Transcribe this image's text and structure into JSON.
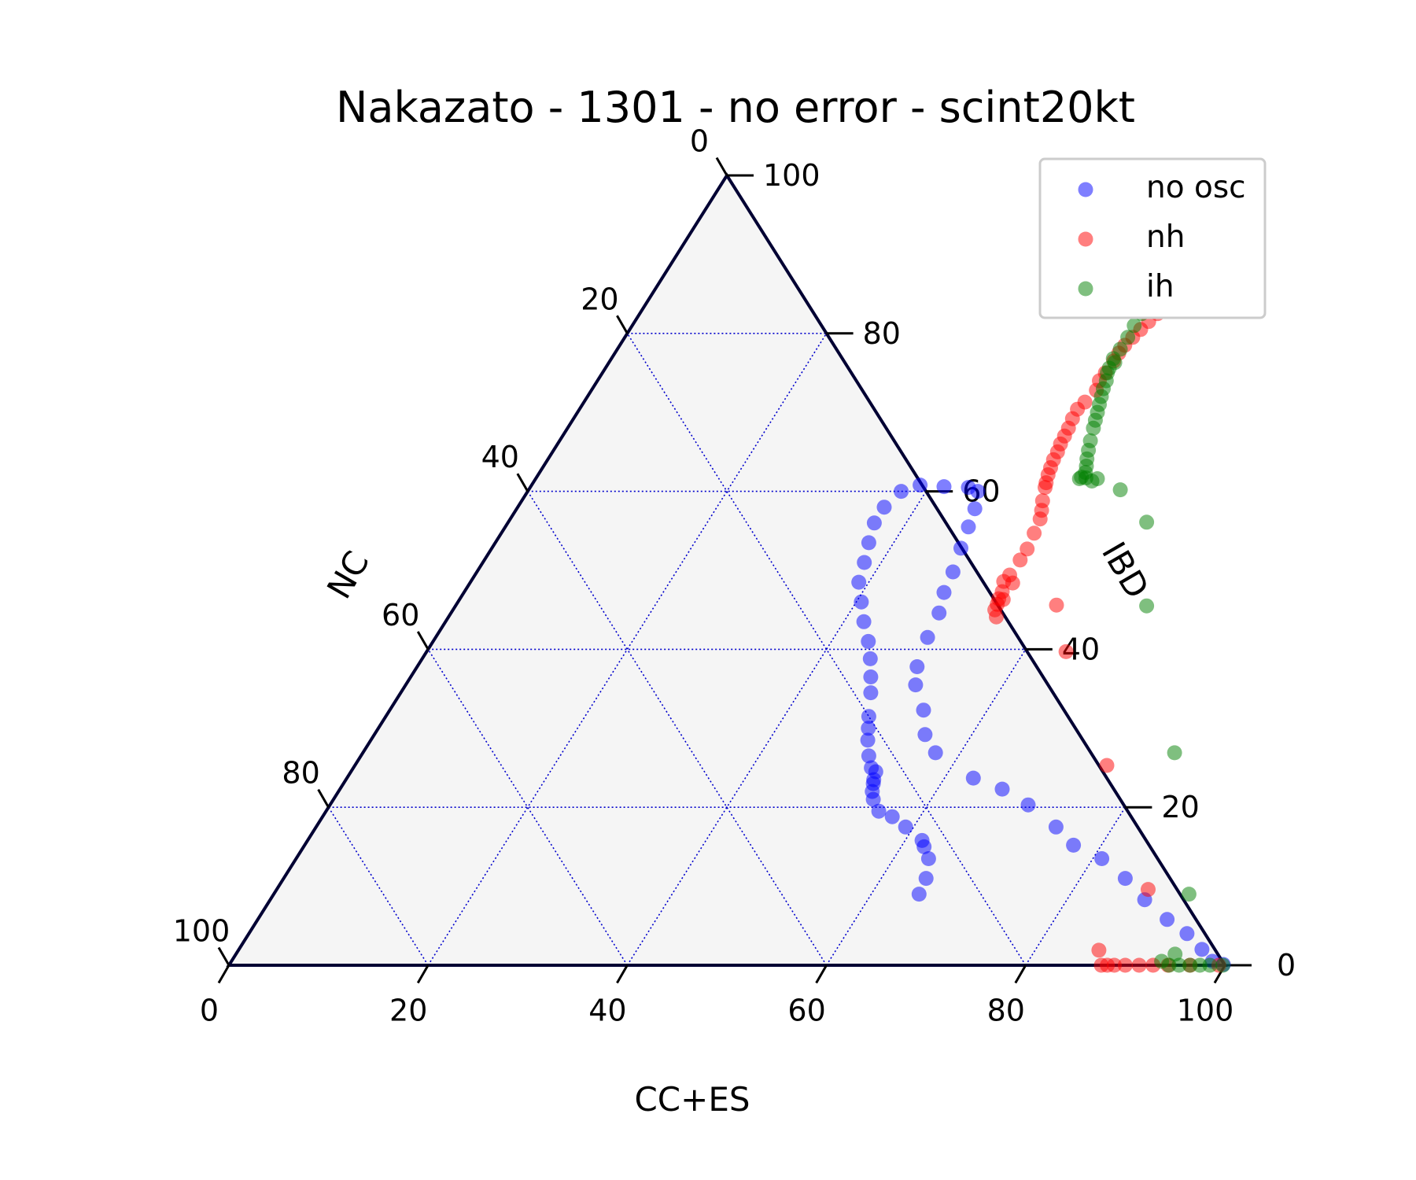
{
  "chart_data": {
    "type": "scatter",
    "subtype": "ternary",
    "title": "Nakazato - 1301 - no error - scint20kt",
    "axes": {
      "bottom": {
        "label": "CC+ES",
        "ticks": [
          "0",
          "20",
          "40",
          "60",
          "80",
          "100"
        ]
      },
      "right": {
        "label": "IBD",
        "ticks": [
          "0",
          "20",
          "40",
          "60",
          "80",
          "100"
        ]
      },
      "left": {
        "label": "NC",
        "ticks": [
          "0",
          "20",
          "40",
          "60",
          "80",
          "100"
        ]
      }
    },
    "range": [
      0,
      100
    ],
    "grid": true,
    "gridStep": 20,
    "legend": {
      "position": "top-right"
    },
    "colors": {
      "background": "#f5f5f5",
      "frame": "#000033",
      "grid": "#0000cc"
    },
    "series": [
      {
        "name": "no osc",
        "color": "#0000ff",
        "points": [
          [
            99.8,
            0.1
          ],
          [
            98.5,
            0.5
          ],
          [
            96.7,
            2
          ],
          [
            94.2,
            4
          ],
          [
            91.3,
            5.8
          ],
          [
            87.8,
            8.3
          ],
          [
            84.5,
            11
          ],
          [
            80.9,
            13.5
          ],
          [
            77.2,
            15.2
          ],
          [
            74.3,
            17.5
          ],
          [
            70.1,
            20.3
          ],
          [
            66.5,
            22.3
          ],
          [
            62.9,
            23.7
          ],
          [
            57.5,
            26.9
          ],
          [
            55.3,
            29.2
          ],
          [
            53.6,
            32.3
          ],
          [
            51.2,
            35.5
          ],
          [
            50.2,
            37.8
          ],
          [
            49.4,
            41.5
          ],
          [
            49,
            44.6
          ],
          [
            48.2,
            47.2
          ],
          [
            47.8,
            49.8
          ],
          [
            47.1,
            52.8
          ],
          [
            46.5,
            55.5
          ],
          [
            46,
            57.8
          ],
          [
            45.2,
            60
          ],
          [
            44,
            60.5
          ],
          [
            41.5,
            60.6
          ],
          [
            39,
            60.8
          ],
          [
            37.5,
            60
          ],
          [
            36.8,
            58
          ],
          [
            36.8,
            56
          ],
          [
            37.5,
            53.5
          ],
          [
            38.3,
            51
          ],
          [
            39,
            48.5
          ],
          [
            40.5,
            46
          ],
          [
            42,
            43.5
          ],
          [
            43.7,
            41
          ],
          [
            45,
            38.8
          ],
          [
            46.2,
            36.5
          ],
          [
            47.2,
            34.5
          ],
          [
            48.5,
            31.5
          ],
          [
            49.2,
            30
          ],
          [
            49.9,
            28.5
          ],
          [
            51,
            26.5
          ],
          [
            52,
            25
          ],
          [
            52.7,
            24.5
          ],
          [
            53,
            23.5
          ],
          [
            53.2,
            23
          ],
          [
            53.6,
            22
          ],
          [
            54.2,
            21
          ],
          [
            55.5,
            19.5
          ],
          [
            57.2,
            18.8
          ],
          [
            59.2,
            17.5
          ],
          [
            61.7,
            15.8
          ],
          [
            62.3,
            15
          ],
          [
            63.5,
            13.5
          ],
          [
            64.5,
            11
          ],
          [
            64.8,
            9
          ]
        ]
      },
      {
        "name": "nh",
        "color": "#ff0000",
        "points": [
          [
            99.4,
            0
          ],
          [
            96.5,
            0
          ],
          [
            94.3,
            0
          ],
          [
            92.8,
            0
          ],
          [
            91.4,
            0
          ],
          [
            90,
            0
          ],
          [
            88.9,
            0
          ],
          [
            88.2,
            0
          ],
          [
            87.6,
            0
          ],
          [
            86.4,
            1.9
          ],
          [
            87.5,
            9.6
          ],
          [
            75.5,
            25.3
          ],
          [
            64.2,
            39.7
          ],
          [
            60.3,
            45.6
          ],
          [
            55,
            44.1
          ],
          [
            54.4,
            45
          ],
          [
            54.3,
            45.7
          ],
          [
            54.1,
            46.4
          ],
          [
            54.6,
            46.3
          ],
          [
            54,
            47.3
          ],
          [
            54.5,
            48.4
          ],
          [
            53.5,
            48.6
          ],
          [
            53.7,
            49.4
          ],
          [
            53.8,
            51.3
          ],
          [
            53.8,
            52.7
          ],
          [
            53.5,
            54.7
          ],
          [
            53.2,
            56.5
          ],
          [
            52.8,
            57.6
          ],
          [
            52.3,
            58.8
          ],
          [
            51.7,
            60.5
          ],
          [
            51.5,
            61.1
          ],
          [
            51.2,
            62.1
          ],
          [
            51,
            63
          ],
          [
            50.8,
            64
          ],
          [
            50.7,
            65
          ],
          [
            50.5,
            66
          ],
          [
            50.4,
            67
          ],
          [
            50.3,
            68
          ],
          [
            50.1,
            69.2
          ],
          [
            50,
            70.4
          ],
          [
            50.3,
            71.3
          ],
          [
            50.7,
            72.8
          ],
          [
            50.4,
            74
          ],
          [
            50.5,
            75
          ],
          [
            50.6,
            76.5
          ],
          [
            50.6,
            77.5
          ],
          [
            50.7,
            78.5
          ],
          [
            51,
            79.5
          ],
          [
            51.3,
            80.5
          ],
          [
            51.6,
            81.5
          ],
          [
            52,
            82.5
          ],
          [
            52.4,
            83.5
          ],
          [
            52.9,
            84.5
          ],
          [
            53.3,
            85.5
          ],
          [
            53.8,
            86.5
          ],
          [
            54.3,
            87.5
          ],
          [
            54.9,
            88.5
          ]
        ]
      },
      {
        "name": "ih",
        "color": "#008000",
        "points": [
          [
            99.8,
            0
          ],
          [
            98.5,
            0
          ],
          [
            97.5,
            0
          ],
          [
            96.5,
            0
          ],
          [
            95.4,
            0
          ],
          [
            94.4,
            0
          ],
          [
            93.4,
            0.5
          ],
          [
            94.3,
            1.4
          ],
          [
            91.9,
            9
          ],
          [
            81.5,
            26.9
          ],
          [
            69.4,
            45.5
          ],
          [
            64.1,
            56.1
          ],
          [
            59.4,
            60.2
          ],
          [
            56.4,
            61.6
          ],
          [
            56,
            61.3
          ],
          [
            55.2,
            61.7
          ],
          [
            54.7,
            61.8
          ],
          [
            54.6,
            61.6
          ],
          [
            54.8,
            62.4
          ],
          [
            54.5,
            63.2
          ],
          [
            54.1,
            64.1
          ],
          [
            53.7,
            65.2
          ],
          [
            53.3,
            66.4
          ],
          [
            52.8,
            68
          ],
          [
            52.5,
            69
          ],
          [
            52.2,
            70
          ],
          [
            51.9,
            71
          ],
          [
            51.6,
            72
          ],
          [
            51.3,
            73
          ],
          [
            51.1,
            74
          ],
          [
            50.7,
            75
          ],
          [
            50.6,
            75.6
          ],
          [
            50.4,
            76.8
          ],
          [
            50.8,
            76.3
          ],
          [
            50.5,
            78
          ],
          [
            50.5,
            79.5
          ],
          [
            50.4,
            81
          ],
          [
            50.4,
            82.5
          ],
          [
            50.4,
            84
          ],
          [
            50.4,
            85.5
          ],
          [
            50.6,
            86.5
          ],
          [
            51,
            87.5
          ],
          [
            51.5,
            88.5
          ],
          [
            52.2,
            89.2
          ],
          [
            53,
            89.8
          ],
          [
            53.8,
            90.2
          ]
        ]
      }
    ]
  }
}
